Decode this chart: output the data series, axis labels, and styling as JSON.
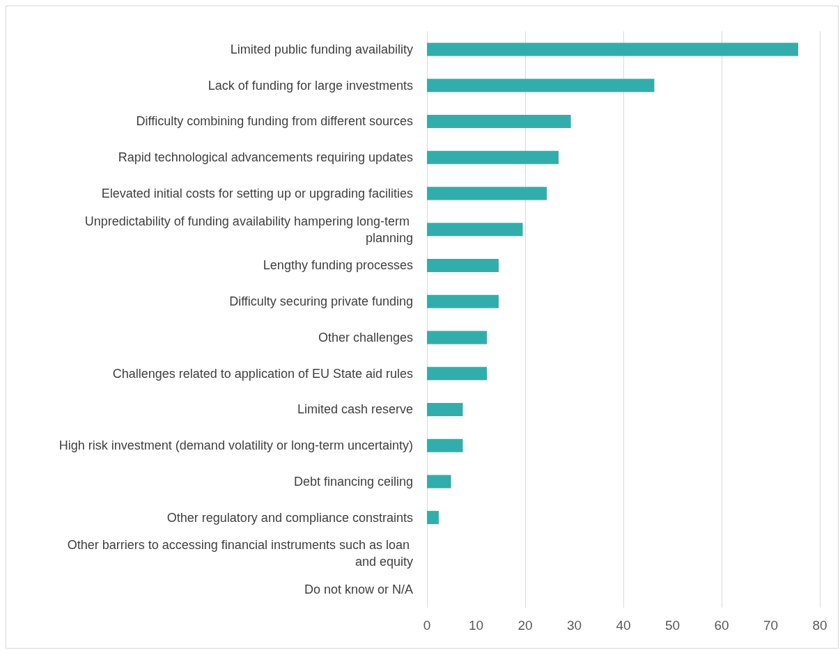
{
  "chart_data": {
    "type": "bar",
    "orientation": "horizontal",
    "categories": [
      "Limited public funding availability",
      "Lack of funding for large investments",
      "Difficulty combining funding from different sources",
      "Rapid technological advancements requiring updates",
      "Elevated initial costs for setting up or upgrading facilities",
      "Unpredictability of funding availability hampering long-term planning",
      "Lengthy funding processes",
      "Difficulty securing private funding",
      "Other challenges",
      "Challenges related to application of EU State aid rules",
      "Limited cash reserve",
      "High risk investment (demand volatility or long-term uncertainty)",
      "Debt financing ceiling",
      "Other regulatory and compliance constraints",
      "Other barriers to accessing financial instruments such as loan and equity",
      "Do not know or N/A"
    ],
    "values": [
      75.6,
      46.3,
      29.3,
      26.8,
      24.4,
      19.5,
      14.6,
      14.6,
      12.2,
      12.2,
      7.3,
      7.3,
      4.9,
      2.4,
      0,
      0
    ],
    "color": "#31aeac",
    "xlim": [
      0,
      80
    ],
    "xticks": [
      0,
      10,
      20,
      30,
      40,
      50,
      60,
      70,
      80
    ],
    "grid": "x"
  }
}
